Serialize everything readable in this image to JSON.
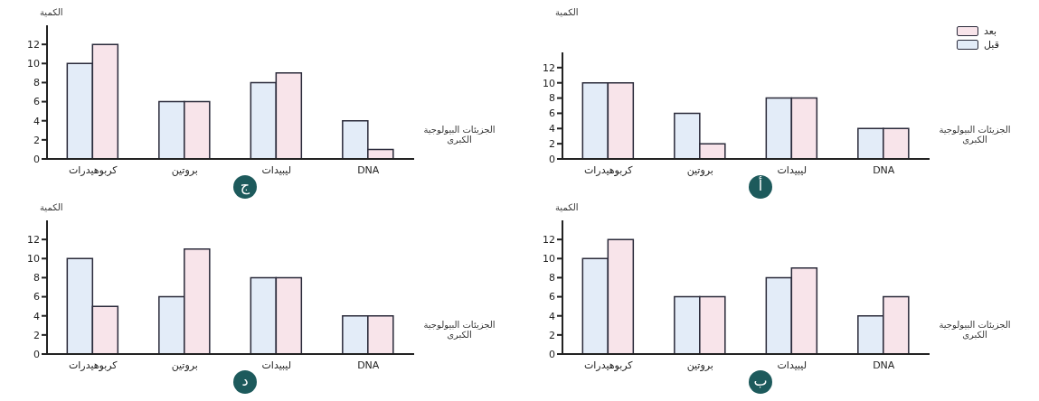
{
  "chart_data": [
    {
      "type": "bar",
      "title": "ج",
      "ylabel": "الكمية",
      "xlabel": "الجزيئات البيولوجية الكبرى",
      "categories": [
        "كربوهيدرات",
        "بروتين",
        "ليبيدات",
        "DNA"
      ],
      "series": [
        {
          "color": "#e3ecf8",
          "values": [
            10,
            6,
            8,
            4
          ]
        },
        {
          "color": "#f8e4ea",
          "values": [
            12,
            6,
            9,
            1
          ]
        }
      ],
      "ylim": [
        0,
        14
      ],
      "yticks": [
        0,
        2,
        4,
        6,
        8,
        10,
        12
      ],
      "grid": false,
      "legend": false
    },
    {
      "type": "bar",
      "title": "أ",
      "ylabel": "الكمية",
      "xlabel": "الجزيئات البيولوجية الكبرى",
      "categories": [
        "كربوهيدرات",
        "بروتين",
        "ليبيدات",
        "DNA"
      ],
      "series": [
        {
          "name": "قبل",
          "color": "#e3ecf8",
          "values": [
            10,
            6,
            8,
            4
          ]
        },
        {
          "name": "بعد",
          "color": "#f8e4ea",
          "values": [
            10,
            2,
            8,
            4
          ]
        }
      ],
      "ylim": [
        0,
        14
      ],
      "yticks": [
        0,
        2,
        4,
        6,
        8,
        10,
        12
      ],
      "grid": false,
      "legend": "top right"
    },
    {
      "type": "bar",
      "title": "د",
      "ylabel": "الكمية",
      "xlabel": "الجزيئات البيولوجية الكبرى",
      "categories": [
        "كربوهيدرات",
        "بروتين",
        "ليبيدات",
        "DNA"
      ],
      "series": [
        {
          "color": "#e3ecf8",
          "values": [
            10,
            6,
            8,
            4
          ]
        },
        {
          "color": "#f8e4ea",
          "values": [
            5,
            11,
            8,
            4
          ]
        }
      ],
      "ylim": [
        0,
        14
      ],
      "yticks": [
        0,
        2,
        4,
        6,
        8,
        10,
        12
      ],
      "grid": false,
      "legend": false
    },
    {
      "type": "bar",
      "title": "ب",
      "ylabel": "الكمية",
      "xlabel": "الجزيئات البيولوجية الكبرى",
      "categories": [
        "كربوهيدرات",
        "بروتين",
        "ليبيدات",
        "DNA"
      ],
      "series": [
        {
          "color": "#e3ecf8",
          "values": [
            10,
            6,
            8,
            4
          ]
        },
        {
          "color": "#f8e4ea",
          "values": [
            12,
            6,
            9,
            6
          ]
        }
      ],
      "ylim": [
        0,
        14
      ],
      "yticks": [
        0,
        2,
        4,
        6,
        8,
        10,
        12
      ],
      "grid": false,
      "legend": false
    }
  ]
}
